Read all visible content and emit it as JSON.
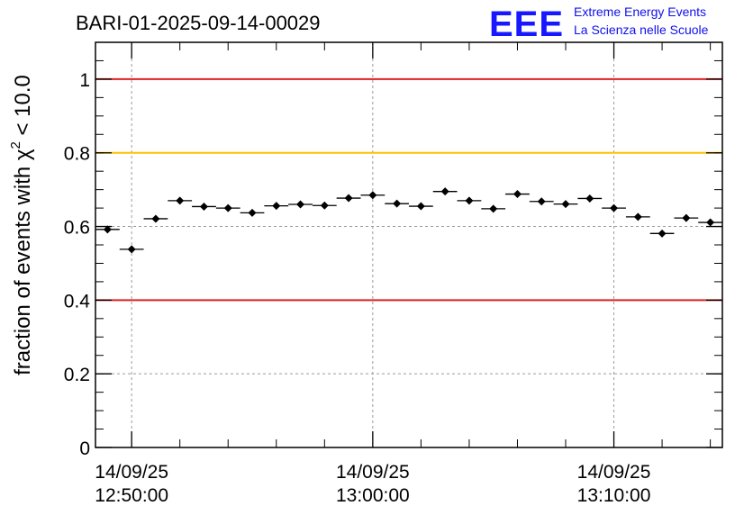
{
  "chart_data": {
    "type": "scatter",
    "title": "BARI-01-2025-09-14-00029",
    "ylabel": {
      "prefix": "fraction of events with ",
      "symbol": "χ",
      "superscript": "2",
      "suffix": " < 10.0"
    },
    "ylim": [
      0,
      1.1
    ],
    "yticks": [
      0,
      0.2,
      0.4,
      0.6,
      0.8,
      1
    ],
    "ytick_labels": [
      "0",
      "0.2",
      "0.4",
      "0.6",
      "0.8",
      "1"
    ],
    "grid": true,
    "x_range": [
      "12:48:30",
      "13:14:30"
    ],
    "x_labels": [
      {
        "date": "14/09/25",
        "time": "12:50:00"
      },
      {
        "date": "14/09/25",
        "time": "13:00:00"
      },
      {
        "date": "14/09/25",
        "time": "13:10:00"
      }
    ],
    "reference_lines": [
      {
        "y": 1.0,
        "color": "#e02020"
      },
      {
        "y": 0.8,
        "color": "#ffc000"
      },
      {
        "y": 0.4,
        "color": "#e02020"
      }
    ],
    "points": [
      {
        "x": "12:49:00",
        "y": 0.592
      },
      {
        "x": "12:50:00",
        "y": 0.538
      },
      {
        "x": "12:51:00",
        "y": 0.621
      },
      {
        "x": "12:52:00",
        "y": 0.67
      },
      {
        "x": "12:53:00",
        "y": 0.654
      },
      {
        "x": "12:54:00",
        "y": 0.65
      },
      {
        "x": "12:55:00",
        "y": 0.637
      },
      {
        "x": "12:56:00",
        "y": 0.656
      },
      {
        "x": "12:57:00",
        "y": 0.66
      },
      {
        "x": "12:58:00",
        "y": 0.657
      },
      {
        "x": "12:59:00",
        "y": 0.677
      },
      {
        "x": "13:00:00",
        "y": 0.685
      },
      {
        "x": "13:01:00",
        "y": 0.662
      },
      {
        "x": "13:02:00",
        "y": 0.655
      },
      {
        "x": "13:03:00",
        "y": 0.695
      },
      {
        "x": "13:04:00",
        "y": 0.67
      },
      {
        "x": "13:05:00",
        "y": 0.648
      },
      {
        "x": "13:06:00",
        "y": 0.688
      },
      {
        "x": "13:07:00",
        "y": 0.668
      },
      {
        "x": "13:08:00",
        "y": 0.661
      },
      {
        "x": "13:09:00",
        "y": 0.676
      },
      {
        "x": "13:10:00",
        "y": 0.65
      },
      {
        "x": "13:11:00",
        "y": 0.626
      },
      {
        "x": "13:12:00",
        "y": 0.581
      },
      {
        "x": "13:13:00",
        "y": 0.623
      },
      {
        "x": "13:14:00",
        "y": 0.611
      }
    ],
    "bin_width_minutes": 1,
    "marker_color": "#000000"
  },
  "logo": {
    "mark": "EEE",
    "line1": "Extreme Energy Events",
    "line2": "La Scienza nelle Scuole",
    "color": "#1818ff"
  }
}
